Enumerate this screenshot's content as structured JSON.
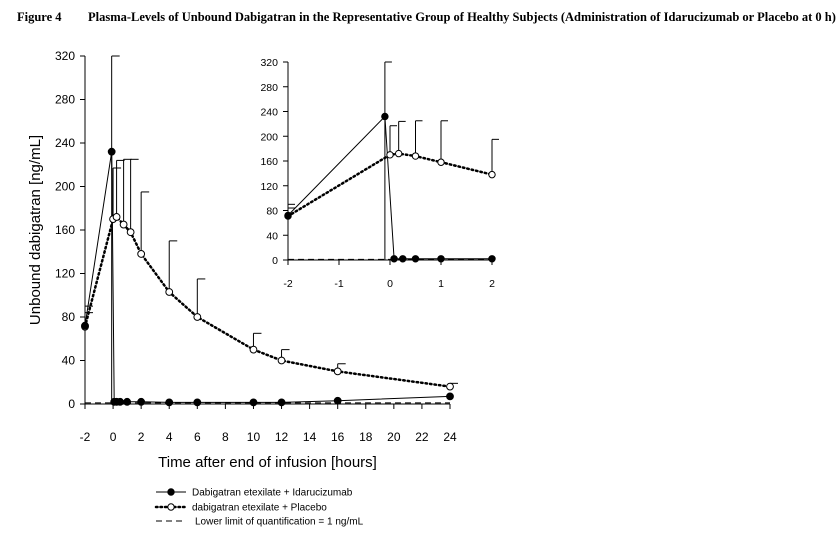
{
  "figure": {
    "label": "Figure 4",
    "title": "Plasma-Levels of Unbound Dabigatran in the Representative Group of Healthy Subjects (Administration of Idarucizumab or Placebo at 0 h)"
  },
  "chart_data": [
    {
      "type": "line",
      "xlabel": "Time after end of infusion [hours]",
      "ylabel": "Unbound dabigatran [ng/mL]",
      "xlim": [
        -2,
        24
      ],
      "ylim": [
        0,
        320
      ],
      "xticks": [
        -2,
        0,
        2,
        4,
        6,
        8,
        10,
        12,
        14,
        16,
        18,
        20,
        22,
        24
      ],
      "yticks": [
        0,
        40,
        80,
        120,
        160,
        200,
        240,
        280,
        320
      ],
      "lloq": 1,
      "series": [
        {
          "name": "Dabigatran etexilate + Idarucizumab",
          "x": [
            -2,
            -0.1,
            0.08,
            0.25,
            0.5,
            1,
            2,
            4,
            6,
            10,
            12,
            16,
            24
          ],
          "y": [
            72,
            232,
            2,
            2,
            2,
            2,
            2,
            1.5,
            1.5,
            1.5,
            1.5,
            3,
            7
          ],
          "err": [
            18,
            88,
            0,
            0,
            0,
            0,
            0,
            0,
            0,
            0,
            0,
            0,
            0
          ]
        },
        {
          "name": "dabigatran etexilate + Placebo",
          "x": [
            -2,
            0,
            0.25,
            0.75,
            1.25,
            2,
            4,
            6,
            10,
            12,
            16,
            24
          ],
          "y": [
            71,
            170,
            172,
            165,
            158,
            138,
            103,
            80,
            50,
            40,
            30,
            16
          ],
          "err": [
            13,
            47,
            52,
            60,
            67,
            57,
            47,
            35,
            15,
            10,
            7,
            3
          ]
        }
      ]
    },
    {
      "type": "line",
      "xlim": [
        -2,
        2
      ],
      "ylim": [
        0,
        320
      ],
      "xticks": [
        -2,
        -1,
        0,
        1,
        2
      ],
      "yticks": [
        0,
        40,
        80,
        120,
        160,
        200,
        240,
        280,
        320
      ],
      "lloq": 1,
      "series": [
        {
          "name": "Dabigatran etexilate + Idarucizumab",
          "x": [
            -2,
            -0.1,
            0.08,
            0.25,
            0.5,
            1,
            2
          ],
          "y": [
            72,
            232,
            2,
            2,
            2,
            2,
            2
          ],
          "err": [
            18,
            88,
            0,
            0,
            0,
            0,
            0
          ]
        },
        {
          "name": "dabigatran etexilate + Placebo",
          "x": [
            -2,
            0,
            0.17,
            0.5,
            1,
            2
          ],
          "y": [
            71,
            170,
            172,
            168,
            158,
            138
          ],
          "err": [
            13,
            47,
            52,
            57,
            67,
            57
          ]
        }
      ]
    }
  ],
  "legend": [
    "Dabigatran etexilate + Idarucizumab",
    "dabigatran etexilate + Placebo",
    "Lower limit of quantification = 1 ng/mL"
  ]
}
